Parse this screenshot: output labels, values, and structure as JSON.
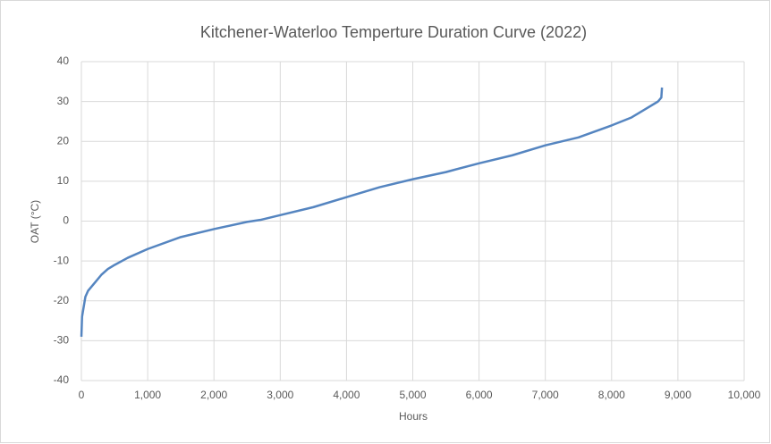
{
  "chart_data": {
    "type": "line",
    "title": "Kitchener-Waterloo Temperture Duration Curve (2022)",
    "x_label": "Hours",
    "y_label": "OAT (°C)",
    "x": [
      0,
      10,
      30,
      60,
      100,
      200,
      300,
      400,
      500,
      700,
      1000,
      1500,
      2000,
      2500,
      2700,
      3000,
      3500,
      4000,
      4500,
      5000,
      5500,
      6000,
      6500,
      7000,
      7500,
      8000,
      8300,
      8500,
      8700,
      8750,
      8760
    ],
    "series": [
      {
        "name": "OAT",
        "color": "#5585c0",
        "values": [
          -29,
          -24,
          -22,
          -19,
          -17.5,
          -15.5,
          -13.5,
          -12,
          -11,
          -9.2,
          -7,
          -4,
          -2,
          -0.2,
          0.3,
          1.5,
          3.5,
          6,
          8.5,
          10.5,
          12.3,
          14.5,
          16.5,
          19,
          21,
          24,
          26,
          28,
          30,
          31,
          33.5
        ]
      }
    ],
    "xlim": [
      0,
      10000
    ],
    "xticks": [
      0,
      {
        "value": 1000,
        "label": "1,000"
      },
      {
        "value": 2000,
        "label": "2,000"
      },
      {
        "value": 3000,
        "label": "3,000"
      },
      {
        "value": 4000,
        "label": "4,000"
      },
      {
        "value": 5000,
        "label": "5,000"
      },
      {
        "value": 6000,
        "label": "6,000"
      },
      {
        "value": 7000,
        "label": "7,000"
      },
      {
        "value": 8000,
        "label": "8,000"
      },
      {
        "value": 9000,
        "label": "9,000"
      },
      {
        "value": 10000,
        "label": "10,000"
      }
    ],
    "ylim": [
      -40,
      40
    ],
    "yticks": [
      -40,
      -30,
      -20,
      -10,
      0,
      10,
      20,
      30,
      40
    ],
    "grid": true
  }
}
